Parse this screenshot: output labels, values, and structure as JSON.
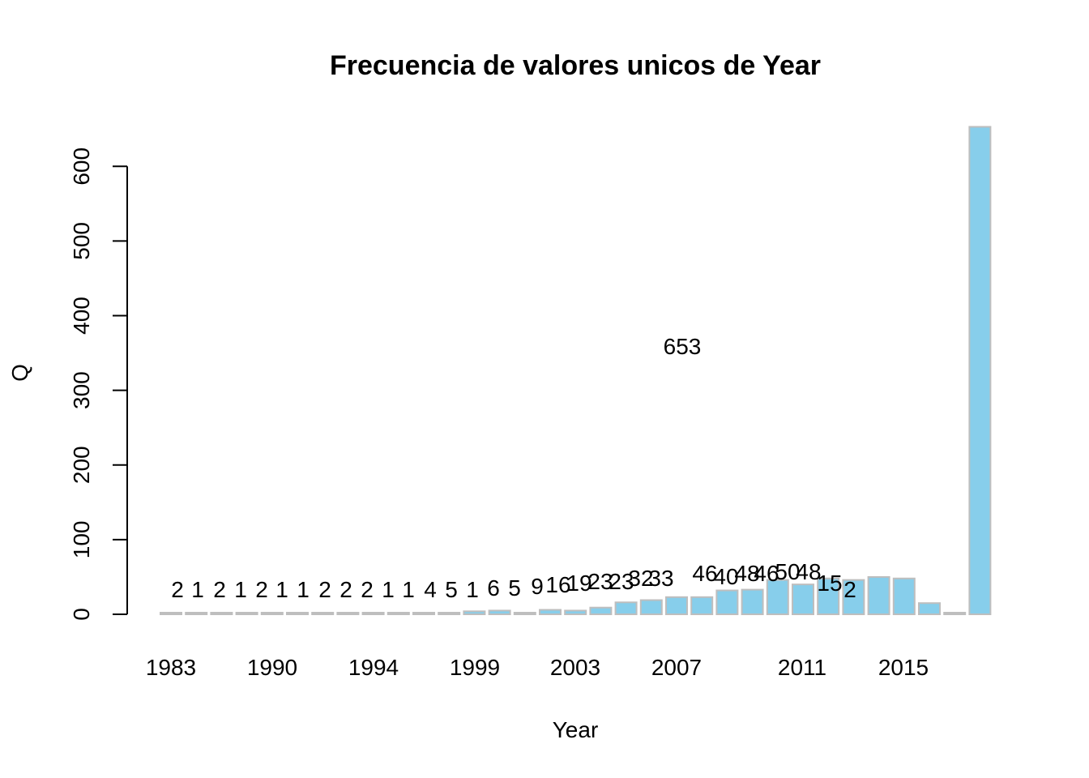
{
  "chart_data": {
    "type": "bar",
    "title": "Frecuencia de valores unicos de Year",
    "xlabel": "Year",
    "ylabel": "Q",
    "ylim": [
      0,
      653
    ],
    "y_ticks": [
      0,
      100,
      200,
      300,
      400,
      500,
      600
    ],
    "x_tick_labels": [
      "1983",
      "1990",
      "1994",
      "1999",
      "2003",
      "2007",
      "2011",
      "2015"
    ],
    "values": [
      2,
      1,
      2,
      1,
      2,
      1,
      1,
      2,
      2,
      2,
      1,
      1,
      4,
      5,
      1,
      6,
      5,
      9,
      16,
      19,
      23,
      23,
      32,
      33,
      46,
      40,
      48,
      46,
      50,
      48,
      15,
      2,
      653
    ],
    "data_labels": [
      "2",
      "1",
      "2",
      "1",
      "2",
      "1",
      "1",
      "2",
      "2",
      "2",
      "1",
      "1",
      "4",
      "5",
      "1",
      "6",
      "5",
      "9",
      "16",
      "19",
      "23",
      "23",
      "32",
      "33",
      "46",
      "40",
      "48",
      "46",
      "50",
      "48",
      "15",
      "2",
      "653"
    ],
    "bar_fill_high": "#87ceeb",
    "bar_fill_low": "#bebebe",
    "bar_stroke": "#bebebe",
    "grid": false,
    "legend": "none"
  }
}
